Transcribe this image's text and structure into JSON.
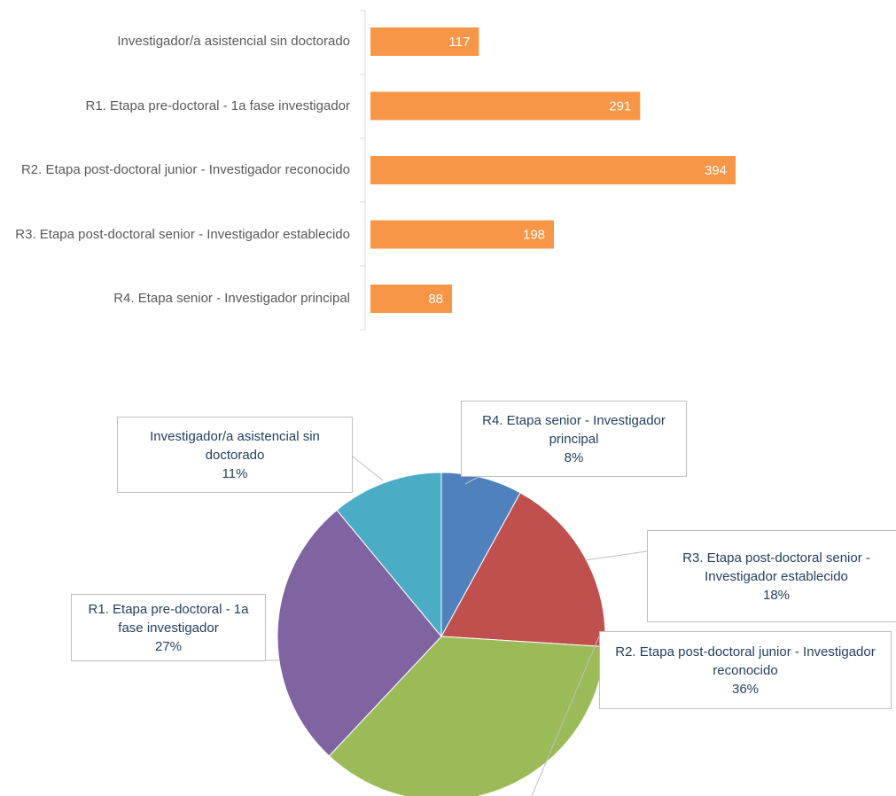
{
  "chart_data": [
    {
      "type": "bar",
      "orientation": "horizontal",
      "color": "#f79646",
      "categories": [
        "Investigador/a asistencial sin doctorado",
        "R1. Etapa pre-doctoral - 1a fase investigador",
        "R2. Etapa post-doctoral junior - Investigador reconocido",
        "R3. Etapa post-doctoral senior - Investigador establecido",
        "R4. Etapa senior - Investigador principal"
      ],
      "values": [
        117,
        291,
        394,
        198,
        88
      ]
    },
    {
      "type": "pie",
      "categories": [
        "R4. Etapa senior - Investigador principal",
        "R3. Etapa post-doctoral senior - Investigador establecido",
        "R2. Etapa post-doctoral junior - Investigador reconocido",
        "R1. Etapa pre-doctoral - 1a fase investigador",
        "Investigador/a asistencial sin doctorado"
      ],
      "values": [
        8,
        18,
        36,
        27,
        11
      ],
      "value_labels": [
        "8%",
        "18%",
        "36%",
        "27%",
        "11%"
      ],
      "colors": [
        "#4f81bd",
        "#c0504d",
        "#9bbb59",
        "#8064a2",
        "#4bacc6"
      ]
    }
  ]
}
